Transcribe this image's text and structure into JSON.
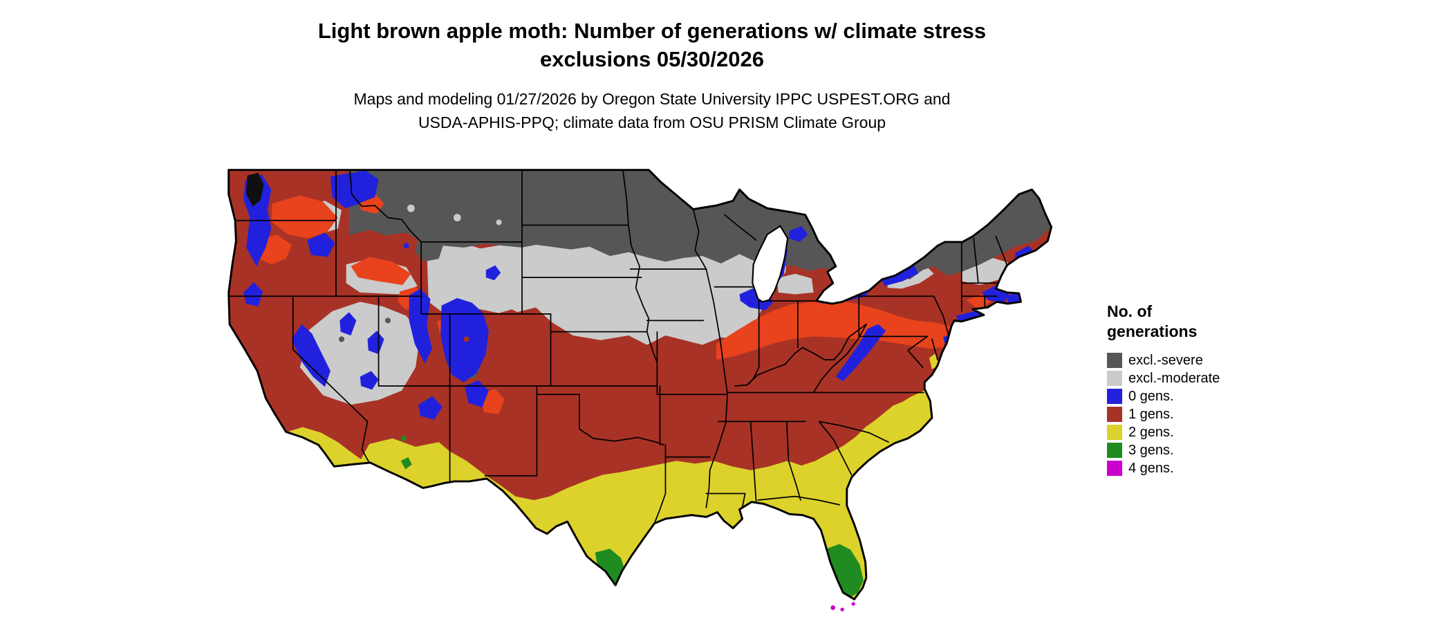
{
  "header": {
    "title_line1": "Light brown apple moth: Number of generations w/ climate stress",
    "title_line2": "exclusions 05/30/2026",
    "subtitle_line1": "Maps and modeling 01/27/2026 by Oregon State University IPPC USPEST.ORG and",
    "subtitle_line2": "USDA-APHIS-PPQ; climate data from OSU PRISM Climate Group"
  },
  "legend": {
    "title_line1": "No. of",
    "title_line2": "generations",
    "items": [
      {
        "key": "excl-severe",
        "label": "excl.-severe",
        "color": "#565656"
      },
      {
        "key": "excl-moderate",
        "label": "excl.-moderate",
        "color": "#cbcbcb"
      },
      {
        "key": "gens-0",
        "label": "0 gens.",
        "color": "#2121dd"
      },
      {
        "key": "gens-1",
        "label": "1 gens.",
        "color": "#a93226"
      },
      {
        "key": "gens-2",
        "label": "2 gens.",
        "color": "#dcd22b"
      },
      {
        "key": "gens-3",
        "label": "3 gens.",
        "color": "#208b20"
      },
      {
        "key": "gens-4",
        "label": "4 gens.",
        "color": "#cc00cc"
      }
    ]
  },
  "map": {
    "region": "Contiguous United States",
    "transition_color": "#e8431c",
    "border_color": "#000000",
    "water_color": "#ffffff"
  }
}
